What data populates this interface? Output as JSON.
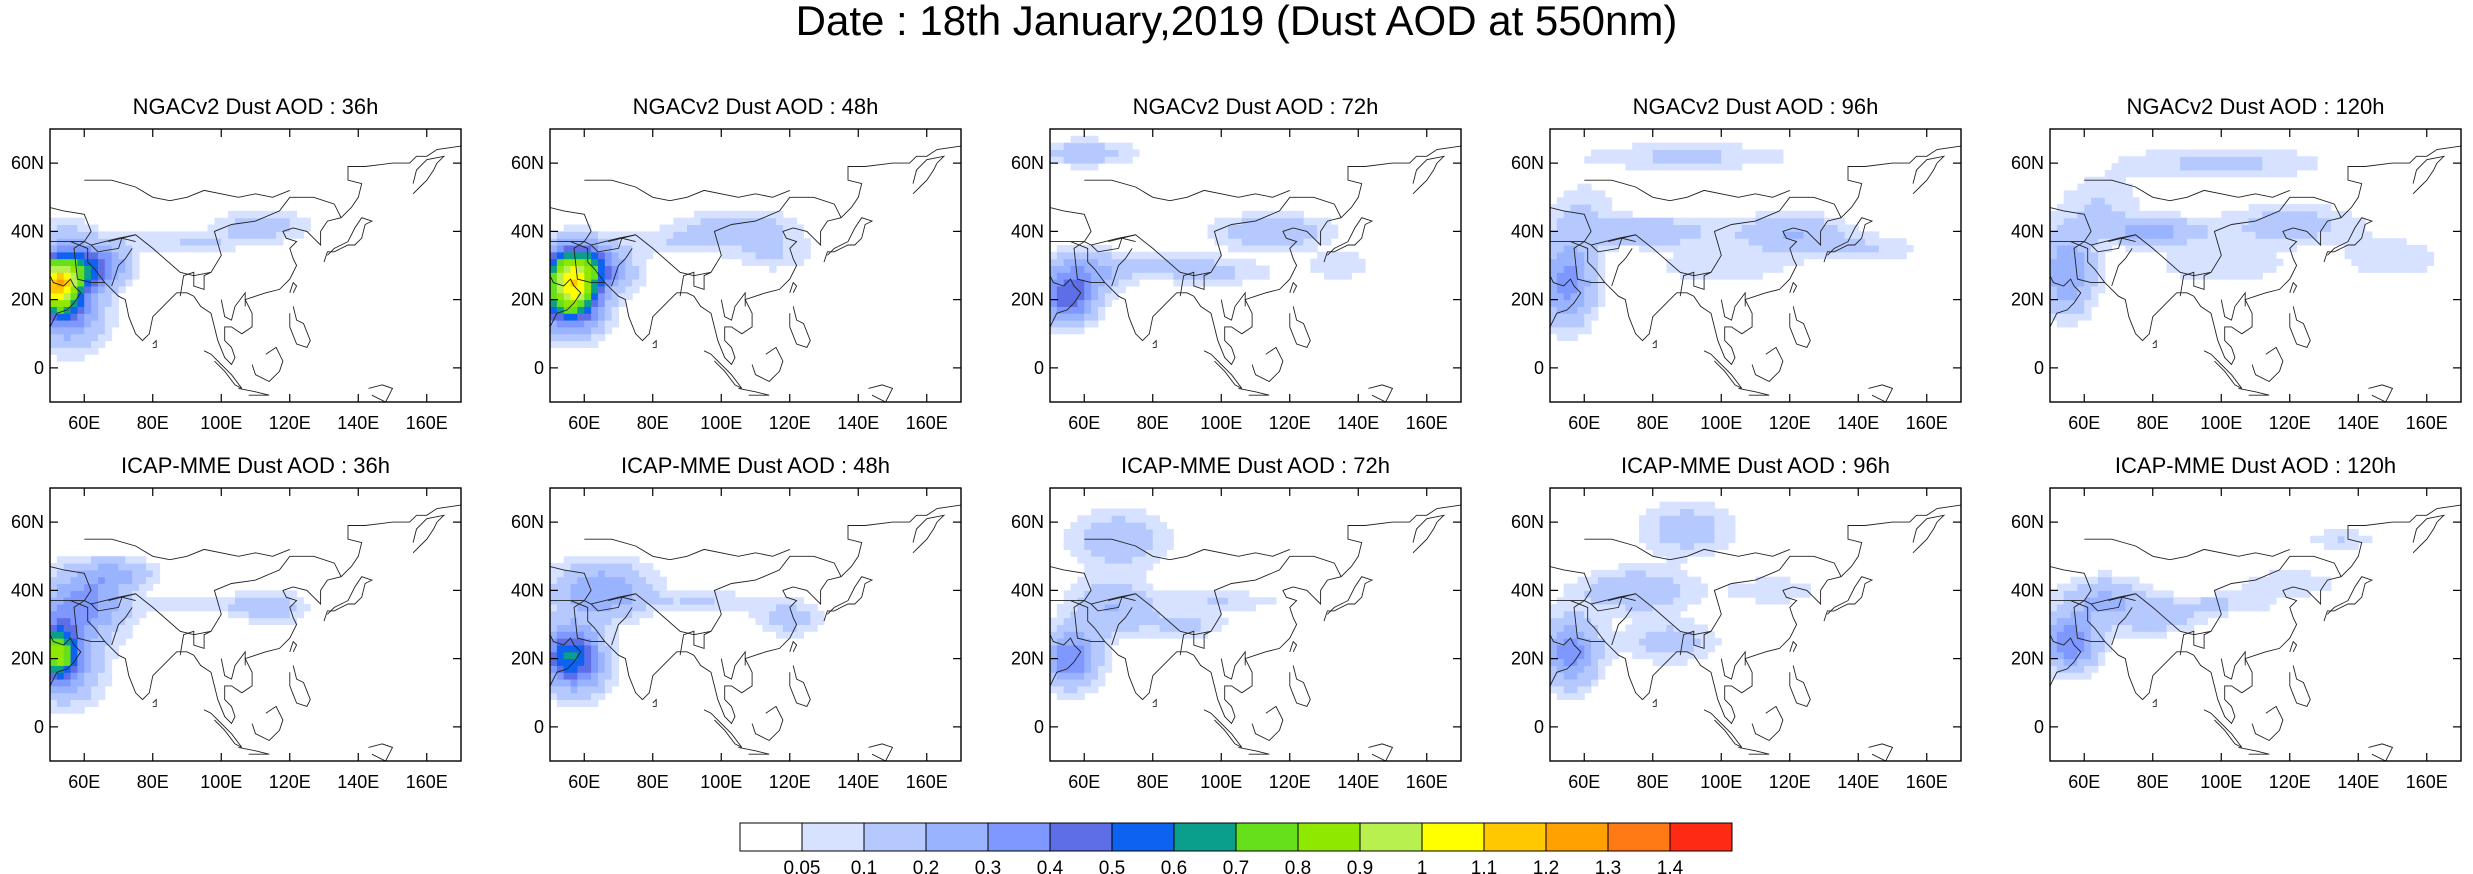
{
  "title": "Date : 18th January,2019 (Dust AOD at 550nm)",
  "map_extent": {
    "lon": [
      50,
      170
    ],
    "lat": [
      -10,
      70
    ]
  },
  "x_ticks": [
    "60E",
    "80E",
    "100E",
    "120E",
    "140E",
    "160E"
  ],
  "y_ticks": [
    "60N",
    "40N",
    "20N",
    "0"
  ],
  "panels": [
    {
      "title": "NGACv2 Dust AOD : 36h",
      "model": "NGACv2",
      "lead": "36h",
      "blobs": [
        [
          52,
          24,
          7,
          8,
          0.95
        ],
        [
          58,
          30,
          10,
          6,
          0.4
        ],
        [
          56,
          16,
          10,
          10,
          0.3
        ],
        [
          66,
          30,
          8,
          6,
          0.2
        ],
        [
          112,
          42,
          14,
          4,
          0.15
        ],
        [
          90,
          37,
          24,
          3,
          0.1
        ],
        [
          55,
          40,
          8,
          4,
          0.1
        ]
      ]
    },
    {
      "title": "NGACv2 Dust AOD : 48h",
      "model": "NGACv2",
      "lead": "48h",
      "blobs": [
        [
          56,
          24,
          8,
          8,
          0.9
        ],
        [
          58,
          32,
          10,
          6,
          0.4
        ],
        [
          56,
          16,
          10,
          8,
          0.3
        ],
        [
          66,
          28,
          10,
          6,
          0.2
        ],
        [
          105,
          42,
          16,
          4,
          0.15
        ],
        [
          115,
          34,
          12,
          6,
          0.1
        ],
        [
          90,
          37,
          20,
          4,
          0.1
        ]
      ]
    },
    {
      "title": "NGACv2 Dust AOD : 72h",
      "model": "NGACv2",
      "lead": "72h",
      "blobs": [
        [
          55,
          20,
          8,
          7,
          0.45
        ],
        [
          60,
          28,
          12,
          6,
          0.25
        ],
        [
          60,
          63,
          15,
          4,
          0.15
        ],
        [
          115,
          40,
          16,
          5,
          0.2
        ],
        [
          100,
          28,
          16,
          4,
          0.1
        ],
        [
          85,
          30,
          14,
          4,
          0.1
        ],
        [
          135,
          30,
          10,
          4,
          0.1
        ]
      ]
    },
    {
      "title": "NGACv2 Dust AOD : 96h",
      "model": "NGACv2",
      "lead": "96h",
      "blobs": [
        [
          55,
          25,
          8,
          12,
          0.35
        ],
        [
          80,
          40,
          16,
          4,
          0.2
        ],
        [
          90,
          62,
          30,
          4,
          0.12
        ],
        [
          120,
          40,
          16,
          5,
          0.2
        ],
        [
          140,
          35,
          20,
          4,
          0.1
        ],
        [
          60,
          45,
          10,
          10,
          0.1
        ],
        [
          100,
          30,
          20,
          5,
          0.1
        ]
      ]
    },
    {
      "title": "NGACv2 Dust AOD : 120h",
      "model": "NGACv2",
      "lead": "120h",
      "blobs": [
        [
          55,
          28,
          8,
          12,
          0.3
        ],
        [
          80,
          40,
          14,
          4,
          0.25
        ],
        [
          100,
          60,
          30,
          5,
          0.12
        ],
        [
          120,
          42,
          20,
          6,
          0.15
        ],
        [
          150,
          32,
          14,
          6,
          0.1
        ],
        [
          65,
          48,
          12,
          8,
          0.1
        ],
        [
          100,
          30,
          20,
          5,
          0.1
        ]
      ]
    },
    {
      "title": "ICAP-MME Dust AOD : 36h",
      "model": "ICAP-MME",
      "lead": "36h",
      "blobs": [
        [
          52,
          22,
          6,
          8,
          0.75
        ],
        [
          60,
          36,
          12,
          10,
          0.35
        ],
        [
          70,
          45,
          10,
          4,
          0.2
        ],
        [
          56,
          16,
          10,
          10,
          0.2
        ],
        [
          115,
          35,
          10,
          5,
          0.15
        ],
        [
          95,
          36,
          16,
          3,
          0.1
        ]
      ]
    },
    {
      "title": "ICAP-MME Dust AOD : 48h",
      "model": "ICAP-MME",
      "lead": "48h",
      "blobs": [
        [
          56,
          22,
          8,
          8,
          0.5
        ],
        [
          65,
          40,
          14,
          8,
          0.3
        ],
        [
          58,
          16,
          10,
          8,
          0.2
        ],
        [
          120,
          32,
          10,
          5,
          0.15
        ],
        [
          95,
          37,
          16,
          3,
          0.1
        ]
      ]
    },
    {
      "title": "ICAP-MME Dust AOD : 72h",
      "model": "ICAP-MME",
      "lead": "72h",
      "blobs": [
        [
          56,
          20,
          8,
          8,
          0.4
        ],
        [
          70,
          55,
          14,
          8,
          0.18
        ],
        [
          68,
          35,
          12,
          8,
          0.2
        ],
        [
          90,
          30,
          12,
          4,
          0.12
        ],
        [
          100,
          37,
          18,
          3,
          0.1
        ]
      ]
    },
    {
      "title": "ICAP-MME Dust AOD : 96h",
      "model": "ICAP-MME",
      "lead": "96h",
      "blobs": [
        [
          56,
          22,
          8,
          10,
          0.35
        ],
        [
          90,
          58,
          14,
          8,
          0.15
        ],
        [
          75,
          40,
          16,
          6,
          0.2
        ],
        [
          85,
          25,
          14,
          6,
          0.15
        ],
        [
          115,
          40,
          14,
          4,
          0.1
        ]
      ]
    },
    {
      "title": "ICAP-MME Dust AOD : 120h",
      "model": "ICAP-MME",
      "lead": "120h",
      "blobs": [
        [
          56,
          25,
          8,
          8,
          0.4
        ],
        [
          66,
          38,
          12,
          6,
          0.2
        ],
        [
          80,
          32,
          14,
          5,
          0.15
        ],
        [
          120,
          42,
          16,
          4,
          0.1
        ],
        [
          135,
          55,
          10,
          3,
          0.1
        ],
        [
          100,
          36,
          16,
          3,
          0.1
        ]
      ]
    }
  ],
  "colorbar": {
    "labels": [
      "0.05",
      "0.1",
      "0.2",
      "0.3",
      "0.4",
      "0.5",
      "0.6",
      "0.7",
      "0.8",
      "0.9",
      "1",
      "1.1",
      "1.2",
      "1.3",
      "1.4"
    ],
    "colors": [
      "#ffffff",
      "#d6e2ff",
      "#b5c9ff",
      "#9ab3ff",
      "#7e98ff",
      "#5d6ee6",
      "#0d63f0",
      "#0a9e8c",
      "#66e01a",
      "#8fe800",
      "#b8f050",
      "#ffff00",
      "#ffc800",
      "#ffa100",
      "#ff7a14",
      "#ff2a14"
    ]
  }
}
